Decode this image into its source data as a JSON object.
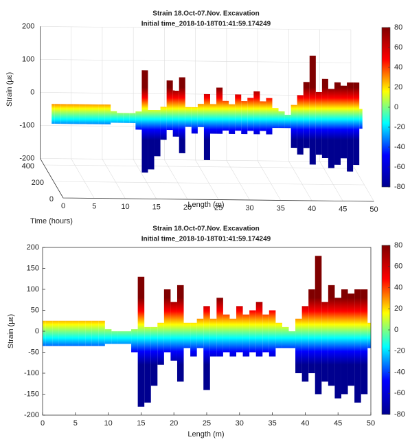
{
  "chart_data": [
    {
      "type": "surface3d",
      "title": "Strain 18.Oct-07.Nov. Excavation",
      "subtitle": "Initial time_2018-10-18T01:41:59.174249",
      "xlabel": "Length (m)",
      "ylabel": "Strain (με)",
      "zlabel": "Time (hours)",
      "xlim": [
        0,
        50
      ],
      "xticks": [
        0,
        5,
        10,
        15,
        20,
        25,
        30,
        35,
        40,
        45,
        50
      ],
      "ylim": [
        -200,
        200
      ],
      "yticks": [
        -200,
        -100,
        0,
        100,
        200
      ],
      "zlim": [
        0,
        480
      ],
      "zticks": [
        0,
        200,
        400
      ],
      "clim": [
        -80,
        80
      ],
      "cticks": [
        -80,
        -60,
        -40,
        -20,
        0,
        20,
        40,
        60,
        80
      ],
      "colormap": [
        "#00008f",
        "#0000ff",
        "#00ffff",
        "#ffff00",
        "#ff0000",
        "#800000"
      ],
      "x": [
        0,
        1,
        2,
        3,
        4,
        5,
        6,
        7,
        8,
        9,
        10,
        11,
        12,
        13,
        14,
        15,
        16,
        17,
        18,
        19,
        20,
        21,
        22,
        23,
        24,
        25,
        26,
        27,
        28,
        29,
        30,
        31,
        32,
        33,
        34,
        35,
        36,
        37,
        38,
        39,
        40,
        41,
        42,
        43,
        44,
        45,
        46,
        47,
        48,
        49,
        50
      ],
      "max": [
        25,
        25,
        25,
        25,
        25,
        25,
        25,
        25,
        25,
        25,
        5,
        0,
        0,
        0,
        5,
        130,
        10,
        10,
        20,
        100,
        70,
        110,
        20,
        20,
        30,
        60,
        30,
        80,
        40,
        30,
        60,
        40,
        50,
        70,
        40,
        50,
        20,
        10,
        0,
        30,
        60,
        100,
        180,
        70,
        110,
        80,
        100,
        90,
        100,
        100,
        20
      ],
      "min": [
        -35,
        -35,
        -35,
        -35,
        -35,
        -35,
        -35,
        -35,
        -35,
        -35,
        -30,
        -30,
        -30,
        -30,
        -50,
        -180,
        -170,
        -130,
        -80,
        -50,
        -70,
        -120,
        -40,
        -60,
        -40,
        -140,
        -60,
        -60,
        -50,
        -60,
        -50,
        -60,
        -50,
        -60,
        -50,
        -60,
        -40,
        -40,
        -40,
        -100,
        -120,
        -100,
        -150,
        -120,
        -130,
        -160,
        -150,
        -130,
        -170,
        -150,
        -40
      ]
    },
    {
      "type": "envelope",
      "title": "Strain 18.Oct-07.Nov. Excavation",
      "subtitle": "Initial time_2018-10-18T01:41:59.174249",
      "xlabel": "Length (m)",
      "ylabel": "Strain (με)",
      "xlim": [
        0,
        50
      ],
      "xticks": [
        0,
        5,
        10,
        15,
        20,
        25,
        30,
        35,
        40,
        45,
        50
      ],
      "ylim": [
        -200,
        200
      ],
      "yticks": [
        -200,
        -150,
        -100,
        -50,
        0,
        50,
        100,
        150,
        200
      ],
      "clim": [
        -80,
        80
      ],
      "cticks": [
        -80,
        -60,
        -40,
        -20,
        0,
        20,
        40,
        60,
        80
      ],
      "colormap": [
        "#00008f",
        "#0000ff",
        "#00ffff",
        "#ffff00",
        "#ff0000",
        "#800000"
      ],
      "x": [
        0,
        1,
        2,
        3,
        4,
        5,
        6,
        7,
        8,
        9,
        10,
        11,
        12,
        13,
        14,
        15,
        16,
        17,
        18,
        19,
        20,
        21,
        22,
        23,
        24,
        25,
        26,
        27,
        28,
        29,
        30,
        31,
        32,
        33,
        34,
        35,
        36,
        37,
        38,
        39,
        40,
        41,
        42,
        43,
        44,
        45,
        46,
        47,
        48,
        49,
        50
      ],
      "max": [
        25,
        25,
        25,
        25,
        25,
        25,
        25,
        25,
        25,
        25,
        5,
        0,
        0,
        0,
        5,
        130,
        10,
        10,
        20,
        100,
        70,
        110,
        20,
        20,
        30,
        60,
        30,
        80,
        40,
        30,
        60,
        40,
        50,
        70,
        40,
        50,
        20,
        10,
        0,
        30,
        60,
        100,
        180,
        70,
        110,
        80,
        100,
        90,
        100,
        100,
        20
      ],
      "min": [
        -35,
        -35,
        -35,
        -35,
        -35,
        -35,
        -35,
        -35,
        -35,
        -35,
        -30,
        -30,
        -30,
        -30,
        -50,
        -180,
        -170,
        -130,
        -80,
        -50,
        -70,
        -120,
        -40,
        -60,
        -40,
        -140,
        -60,
        -60,
        -50,
        -60,
        -50,
        -60,
        -50,
        -60,
        -50,
        -60,
        -40,
        -40,
        -40,
        -100,
        -120,
        -100,
        -150,
        -120,
        -130,
        -160,
        -150,
        -130,
        -170,
        -150,
        -40
      ]
    }
  ]
}
